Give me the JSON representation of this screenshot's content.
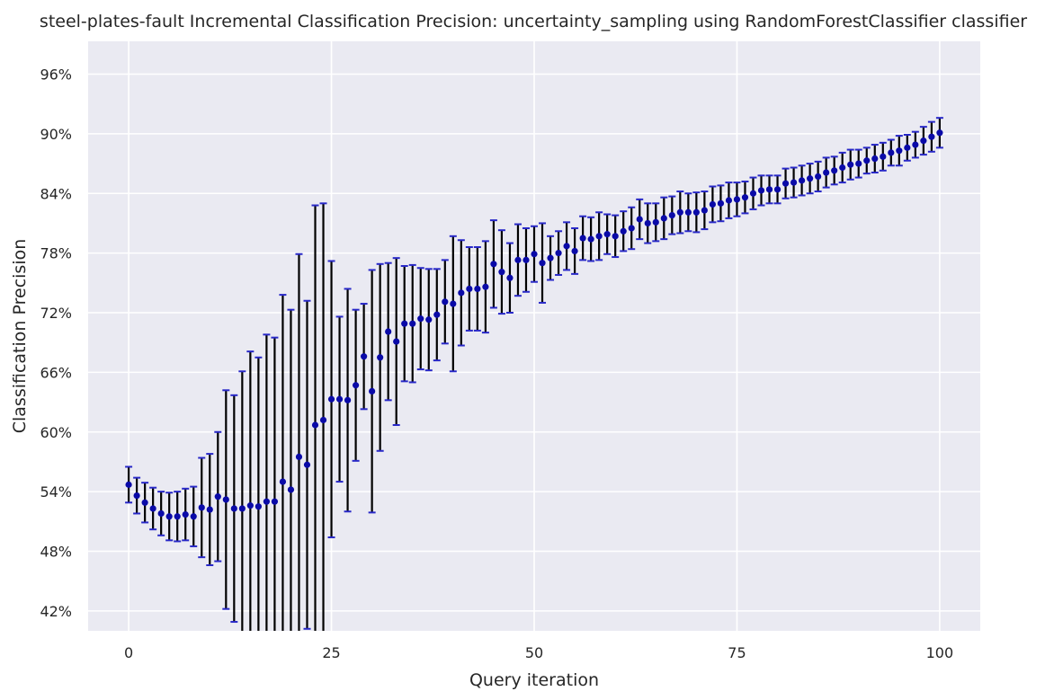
{
  "chart_data": {
    "type": "scatter",
    "title": "steel-plates-fault Incremental Classification Precision: uncertainty_sampling using RandomForestClassifier classifier",
    "xlabel": "Query iteration",
    "ylabel": "Classification Precision",
    "xlim": [
      -5,
      105
    ],
    "ylim": [
      40.0,
      99.3
    ],
    "x_ticks": [
      0,
      25,
      50,
      75,
      100
    ],
    "y_ticks": [
      42,
      48,
      54,
      60,
      66,
      72,
      78,
      84,
      90,
      96
    ],
    "y_tick_format": "percent",
    "grid": true,
    "background": "#eaeaf2",
    "point_color": "#0a0aa8",
    "errorbar_color": "#000000",
    "cap_color": "#2828c8",
    "series": [
      {
        "x": [
          0,
          1,
          2,
          3,
          4,
          5,
          6,
          7,
          8,
          9,
          10,
          11,
          12,
          13,
          14,
          15,
          16,
          17,
          18,
          19,
          20,
          21,
          22,
          23,
          24,
          25,
          26,
          27,
          28,
          29,
          30,
          31,
          32,
          33,
          34,
          35,
          36,
          37,
          38,
          39,
          40,
          41,
          42,
          43,
          44,
          45,
          46,
          47,
          48,
          49,
          50,
          51,
          52,
          53,
          54,
          55,
          56,
          57,
          58,
          59,
          60,
          61,
          62,
          63,
          64,
          65,
          66,
          67,
          68,
          69,
          70,
          71,
          72,
          73,
          74,
          75,
          76,
          77,
          78,
          79,
          80,
          81,
          82,
          83,
          84,
          85,
          86,
          87,
          88,
          89,
          90,
          91,
          92,
          93,
          94,
          95,
          96,
          97,
          98,
          99,
          100
        ],
        "y": [
          54.7,
          53.6,
          52.9,
          52.3,
          51.8,
          51.5,
          51.5,
          51.7,
          51.5,
          52.4,
          52.2,
          53.5,
          53.2,
          52.3,
          52.3,
          52.6,
          52.5,
          53.0,
          53.0,
          55.0,
          54.2,
          57.5,
          56.7,
          60.7,
          61.2,
          63.3,
          63.3,
          63.2,
          64.7,
          67.6,
          64.1,
          67.5,
          70.1,
          69.1,
          70.9,
          70.9,
          71.4,
          71.3,
          71.8,
          73.1,
          72.9,
          74.0,
          74.4,
          74.4,
          74.6,
          76.9,
          76.1,
          75.5,
          77.3,
          77.3,
          77.9,
          77.0,
          77.5,
          78.0,
          78.7,
          78.2,
          79.5,
          79.4,
          79.7,
          79.9,
          79.7,
          80.2,
          80.5,
          81.4,
          81.0,
          81.1,
          81.5,
          81.8,
          82.1,
          82.1,
          82.1,
          82.3,
          82.9,
          83.0,
          83.3,
          83.4,
          83.6,
          84.0,
          84.3,
          84.4,
          84.4,
          85.0,
          85.1,
          85.3,
          85.5,
          85.7,
          86.1,
          86.3,
          86.6,
          86.9,
          87.0,
          87.3,
          87.5,
          87.7,
          88.1,
          88.3,
          88.6,
          88.9,
          89.3,
          89.7,
          90.1
        ],
        "yerr": [
          1.8,
          1.8,
          2.0,
          2.1,
          2.2,
          2.4,
          2.5,
          2.6,
          3.0,
          5.0,
          5.6,
          6.5,
          11.0,
          11.4,
          13.8,
          15.5,
          15.0,
          16.8,
          16.5,
          18.8,
          18.1,
          20.4,
          16.5,
          22.1,
          21.8,
          13.9,
          8.3,
          11.2,
          7.6,
          5.3,
          12.2,
          9.4,
          6.9,
          8.4,
          5.8,
          5.9,
          5.1,
          5.1,
          4.6,
          4.2,
          6.8,
          5.3,
          4.2,
          4.2,
          4.6,
          4.4,
          4.2,
          3.5,
          3.6,
          3.2,
          2.8,
          4.0,
          2.2,
          2.2,
          2.4,
          2.3,
          2.2,
          2.2,
          2.4,
          2.0,
          2.1,
          2.0,
          2.1,
          2.0,
          2.0,
          1.9,
          2.1,
          1.9,
          2.1,
          1.9,
          2.0,
          1.9,
          1.8,
          1.8,
          1.8,
          1.7,
          1.6,
          1.6,
          1.5,
          1.4,
          1.4,
          1.5,
          1.5,
          1.5,
          1.5,
          1.5,
          1.5,
          1.4,
          1.5,
          1.5,
          1.4,
          1.3,
          1.4,
          1.4,
          1.3,
          1.5,
          1.3,
          1.3,
          1.4,
          1.5,
          1.5
        ]
      }
    ]
  }
}
